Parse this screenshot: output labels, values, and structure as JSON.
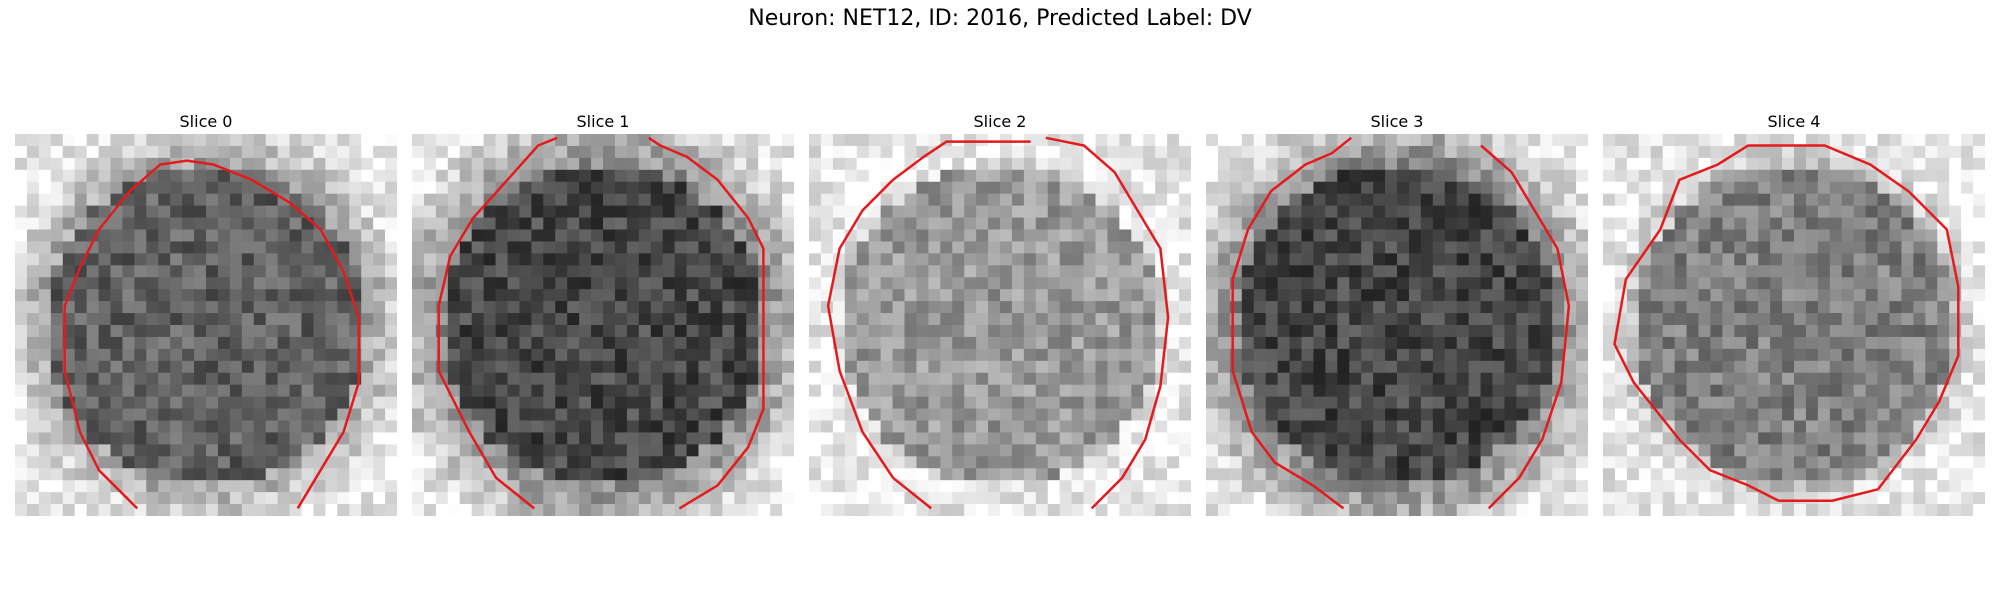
{
  "figure": {
    "title": "Neuron: NET12, ID: 2016, Predicted Label: DV"
  },
  "colors": {
    "contour": "#e41a1c",
    "background": "#ffffff",
    "colormap": "grayscale"
  },
  "slices": [
    {
      "title": "Slice 0",
      "mean_intensity": 0.38,
      "seed": 11
    },
    {
      "title": "Slice 1",
      "mean_intensity": 0.28,
      "seed": 23
    },
    {
      "title": "Slice 2",
      "mean_intensity": 0.6,
      "seed": 37
    },
    {
      "title": "Slice 3",
      "mean_intensity": 0.27,
      "seed": 41
    },
    {
      "title": "Slice 4",
      "mean_intensity": 0.5,
      "seed": 53
    }
  ]
}
